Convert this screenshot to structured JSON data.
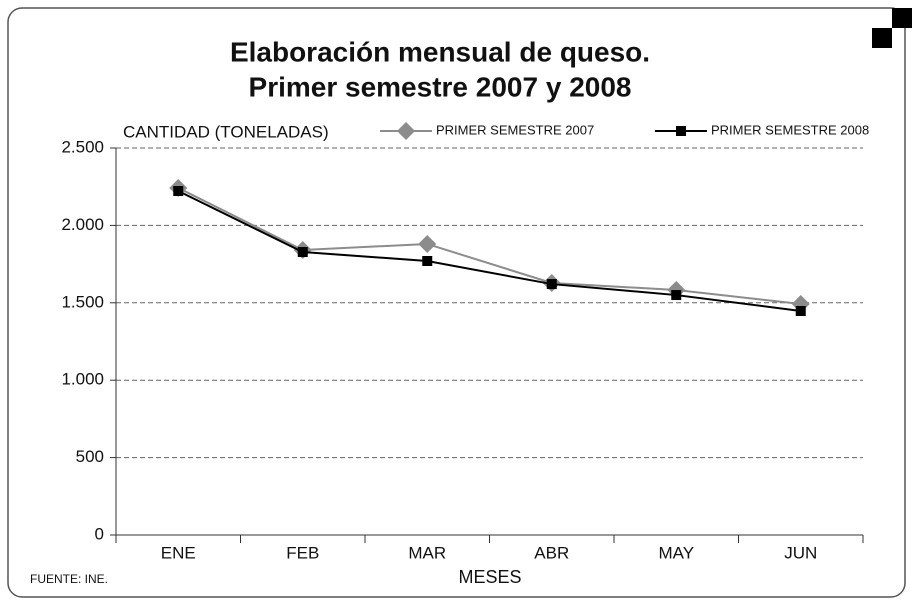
{
  "chart_data": {
    "type": "line",
    "title": [
      "Elaboración mensual de queso.",
      "Primer semestre 2007 y 2008"
    ],
    "y_label": "CANTIDAD (TONELADAS)",
    "x_label": "MESES",
    "source": "FUENTE: INE.",
    "categories": [
      "ENE",
      "FEB",
      "MAR",
      "ABR",
      "MAY",
      "JUN"
    ],
    "series": [
      {
        "name": "PRIMER SEMESTRE 2007",
        "color": "#8c8c8c",
        "marker": "diamond",
        "values": [
          2242,
          1841,
          1880,
          1628,
          1583,
          1492
        ]
      },
      {
        "name": "PRIMER SEMESTRE 2008",
        "color": "#000000",
        "marker": "square",
        "values": [
          2222,
          1828,
          1770,
          1621,
          1550,
          1447
        ]
      }
    ],
    "ylim": [
      0,
      2500
    ],
    "yticks": [
      0,
      500,
      {
        "value": 1000,
        "label": "1.000"
      },
      {
        "value": 1500,
        "label": "1.500"
      },
      {
        "value": 2000,
        "label": "2.000"
      },
      {
        "value": 2500,
        "label": "2.500"
      }
    ],
    "grid": true,
    "legend": "top"
  }
}
